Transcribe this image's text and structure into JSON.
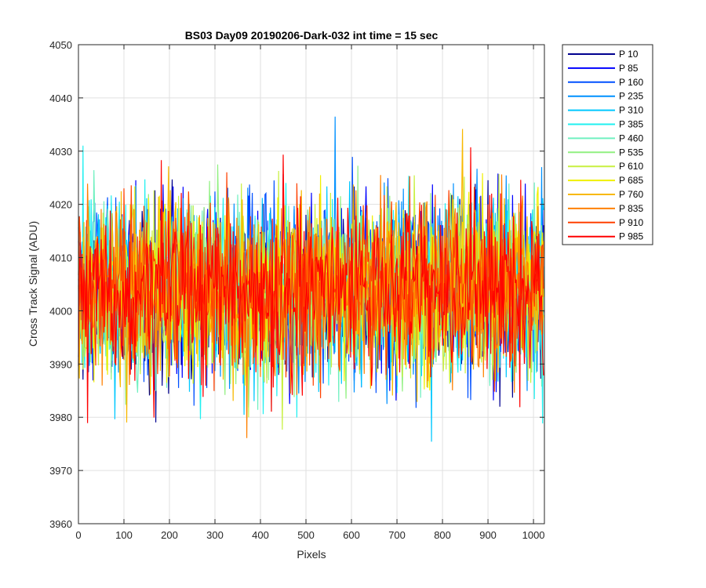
{
  "chart_data": {
    "type": "line",
    "title": "BS03 Day09 20190206-Dark-032 int time = 15 sec",
    "xlabel": "Pixels",
    "ylabel": "Cross Track Signal (ADU)",
    "xlim": [
      0,
      1024
    ],
    "ylim": [
      3960,
      4050
    ],
    "xticks": [
      0,
      100,
      200,
      300,
      400,
      500,
      600,
      700,
      800,
      900,
      1000
    ],
    "yticks": [
      3960,
      3970,
      3980,
      3990,
      4000,
      4010,
      4020,
      4030,
      4040,
      4050
    ],
    "grid": true,
    "legend_position": "outside-right",
    "noise_center": 4004,
    "series": [
      {
        "name": "P 10",
        "color": "#00008f"
      },
      {
        "name": "P 85",
        "color": "#0000ff"
      },
      {
        "name": "P 160",
        "color": "#0050ff"
      },
      {
        "name": "P 235",
        "color": "#0090ff"
      },
      {
        "name": "P 310",
        "color": "#00c8ff"
      },
      {
        "name": "P 385",
        "color": "#1ff0f0"
      },
      {
        "name": "P 460",
        "color": "#70f0c0"
      },
      {
        "name": "P 535",
        "color": "#90f080"
      },
      {
        "name": "P 610",
        "color": "#c8f040"
      },
      {
        "name": "P 685",
        "color": "#f0f000"
      },
      {
        "name": "P 760",
        "color": "#f8b800"
      },
      {
        "name": "P 835",
        "color": "#ff8000"
      },
      {
        "name": "P 910",
        "color": "#ff4000"
      },
      {
        "name": "P 985",
        "color": "#ff0000"
      }
    ]
  }
}
